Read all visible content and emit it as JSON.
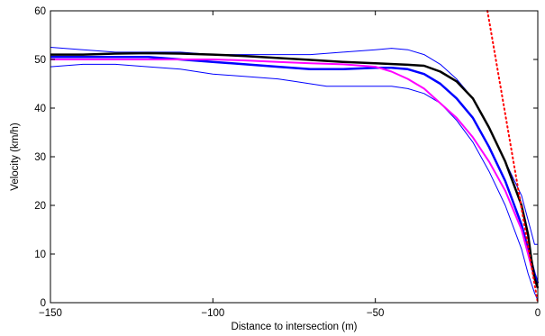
{
  "chart_data": {
    "type": "line",
    "xlabel": "Distance to intersection (m)",
    "ylabel": "Velocity (km/h)",
    "xlim": [
      -150,
      0
    ],
    "ylim": [
      0,
      60
    ],
    "xticks": [
      -150,
      -100,
      -50,
      0
    ],
    "xtick_labels": [
      "−150",
      "−100",
      "−50",
      "0"
    ],
    "yticks": [
      0,
      10,
      20,
      30,
      40,
      50,
      60
    ],
    "ytick_labels": [
      "0",
      "10",
      "20",
      "30",
      "40",
      "50",
      "60"
    ],
    "grid": false,
    "legend": "none",
    "series": [
      {
        "color": "#0000ff",
        "width": 1,
        "style": "solid",
        "x": [
          -150,
          -140,
          -130,
          -120,
          -110,
          -100,
          -90,
          -80,
          -70,
          -60,
          -50,
          -45,
          -40,
          -35,
          -30,
          -25,
          -20,
          -15,
          -10,
          -5,
          -3,
          -1,
          0
        ],
        "y": [
          52.5,
          52,
          51.5,
          51.5,
          51.5,
          51,
          51,
          51,
          51,
          51.5,
          52,
          52.3,
          52,
          51,
          49,
          46,
          42,
          36,
          29,
          22,
          17,
          12,
          12
        ]
      },
      {
        "color": "#0000ff",
        "width": 1,
        "style": "solid",
        "x": [
          -150,
          -140,
          -130,
          -120,
          -110,
          -100,
          -90,
          -80,
          -75,
          -70,
          -65,
          -60,
          -55,
          -50,
          -45,
          -40,
          -35,
          -30,
          -25,
          -20,
          -15,
          -10,
          -5,
          -3,
          -1,
          0
        ],
        "y": [
          48.5,
          49,
          49,
          48.5,
          48,
          47,
          46.5,
          46,
          45.5,
          45,
          44.5,
          44.5,
          44.5,
          44.5,
          44.5,
          44,
          43,
          41,
          37.5,
          33,
          27,
          20,
          11,
          6,
          2,
          0.5
        ]
      },
      {
        "color": "#0000ff",
        "width": 2.5,
        "style": "solid",
        "x": [
          -150,
          -140,
          -130,
          -120,
          -110,
          -100,
          -90,
          -80,
          -70,
          -60,
          -50,
          -45,
          -40,
          -35,
          -30,
          -25,
          -20,
          -15,
          -10,
          -5,
          -3,
          -1,
          0
        ],
        "y": [
          50.5,
          50.5,
          50.5,
          50.5,
          50,
          49.5,
          49,
          48.5,
          48,
          48,
          48.3,
          48.3,
          48,
          47,
          45,
          42,
          38,
          32,
          25,
          16,
          11,
          6,
          4
        ]
      },
      {
        "color": "#ff00ff",
        "width": 2,
        "style": "solid",
        "x": [
          -150,
          -140,
          -130,
          -120,
          -110,
          -100,
          -90,
          -80,
          -70,
          -60,
          -50,
          -45,
          -40,
          -35,
          -30,
          -25,
          -20,
          -15,
          -10,
          -5,
          -3,
          -1,
          0
        ],
        "y": [
          50,
          50,
          50,
          50,
          50,
          50,
          49.8,
          49.5,
          49.2,
          49,
          48.5,
          47.5,
          46,
          44,
          41,
          38,
          34,
          29,
          23,
          15,
          10,
          5,
          3
        ]
      },
      {
        "color": "#000000",
        "width": 2.5,
        "style": "solid",
        "x": [
          -150,
          -140,
          -130,
          -120,
          -110,
          -100,
          -90,
          -80,
          -70,
          -60,
          -50,
          -40,
          -35,
          -30,
          -25,
          -20,
          -15,
          -10,
          -5,
          -3,
          -2,
          -1,
          0
        ],
        "y": [
          51,
          51,
          51.2,
          51.3,
          51.2,
          51,
          50.7,
          50.3,
          49.9,
          49.5,
          49.2,
          48.9,
          48.7,
          47.5,
          45.5,
          42,
          36,
          29,
          20,
          14,
          9,
          5,
          3
        ]
      },
      {
        "color": "#ff0000",
        "width": 2,
        "style": "dotted",
        "x": [
          -15.5,
          0
        ],
        "y": [
          60,
          0
        ]
      }
    ]
  }
}
